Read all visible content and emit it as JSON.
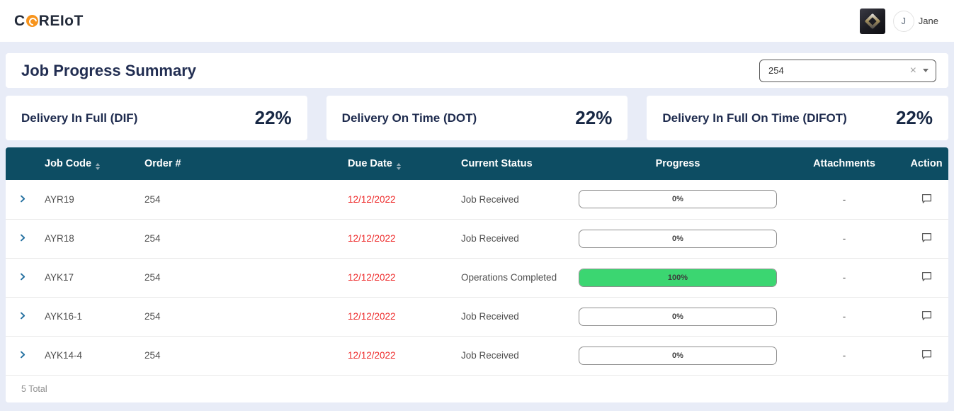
{
  "brand": {
    "prefix": "C",
    "suffix": "REIoT"
  },
  "topbar": {
    "user_initial": "J",
    "user_name": "Jane"
  },
  "page_title": "Job Progress Summary",
  "filter": {
    "value": "254",
    "clear_glyph": "×"
  },
  "kpis": [
    {
      "label": "Delivery In Full (DIF)",
      "value": "22%"
    },
    {
      "label": "Delivery On Time (DOT)",
      "value": "22%"
    },
    {
      "label": "Delivery In Full On Time (DIFOT)",
      "value": "22%"
    }
  ],
  "table": {
    "columns": [
      {
        "key": "job_code",
        "label": "Job Code",
        "sortable": true
      },
      {
        "key": "order",
        "label": "Order #",
        "sortable": false
      },
      {
        "key": "due_date",
        "label": "Due Date",
        "sortable": true
      },
      {
        "key": "status",
        "label": "Current Status",
        "sortable": false
      },
      {
        "key": "progress",
        "label": "Progress",
        "sortable": false
      },
      {
        "key": "attachments",
        "label": "Attachments",
        "sortable": false
      },
      {
        "key": "action",
        "label": "Action",
        "sortable": false
      }
    ],
    "rows": [
      {
        "job_code": "AYR19",
        "order": "254",
        "due_date": "12/12/2022",
        "status": "Job Received",
        "progress": 0,
        "progress_label": "0%",
        "attachments": "-"
      },
      {
        "job_code": "AYR18",
        "order": "254",
        "due_date": "12/12/2022",
        "status": "Job Received",
        "progress": 0,
        "progress_label": "0%",
        "attachments": "-"
      },
      {
        "job_code": "AYK17",
        "order": "254",
        "due_date": "12/12/2022",
        "status": "Operations Completed",
        "progress": 100,
        "progress_label": "100%",
        "attachments": "-"
      },
      {
        "job_code": "AYK16-1",
        "order": "254",
        "due_date": "12/12/2022",
        "status": "Job Received",
        "progress": 0,
        "progress_label": "0%",
        "attachments": "-"
      },
      {
        "job_code": "AYK14-4",
        "order": "254",
        "due_date": "12/12/2022",
        "status": "Job Received",
        "progress": 0,
        "progress_label": "0%",
        "attachments": "-"
      }
    ],
    "footer_total": "5 Total"
  },
  "colors": {
    "table_header_bg": "#0d4d63",
    "accent_navy": "#222e52",
    "progress_complete_green": "#3bd671",
    "overdue_date_red": "#ee2b2b",
    "brand_orange": "#f7941d",
    "page_background": "#e8ecf7"
  }
}
